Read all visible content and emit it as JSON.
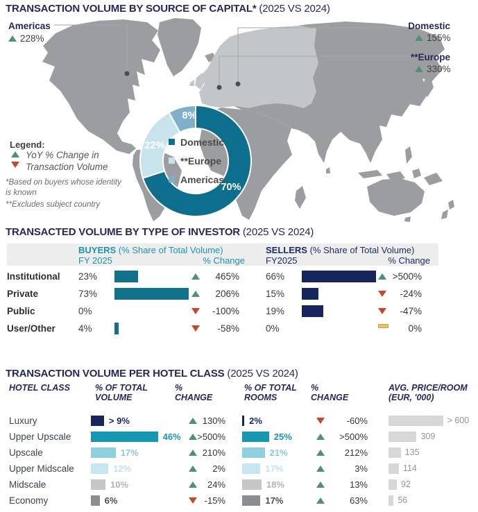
{
  "colors": {
    "navy": "#16265c",
    "navy-text": "#24295a",
    "teal": "#12718a",
    "teal-bright": "#1697b2",
    "teal-text": "#1d94ae",
    "sellers-text": "#1d2d60",
    "donut-domestic": "#0e6e8d",
    "donut-europe": "#c9e3ec",
    "donut-americas": "#7fb0c9",
    "green": "#4f9174",
    "red": "#c4492b",
    "yellow": "#eac068",
    "blue-light": "#8ed0dd",
    "blue-pale": "#c7e7f0",
    "gray-bar": "#c6c6c8",
    "gray-dark": "#8a8e92",
    "price-bar": "#d7d7d8",
    "band": "#ededee",
    "map": "#9b9da0",
    "map-light": "#c3c6c8",
    "line": "#a6a6a6",
    "dot": "#4a4d4f"
  },
  "s1": {
    "title_bold": "TRANSACTION VOLUME BY SOURCE OF CAPITAL*",
    "title_rest": " (2025 VS 2024)",
    "callout_americas": {
      "label": "Americas",
      "value": "228%"
    },
    "callout_domestic": {
      "label": "Domestic",
      "value": "155%"
    },
    "callout_europe": {
      "label": "**Europe",
      "value": "330%"
    },
    "legend_heading": "Legend:",
    "legend_line1": "YoY % Change in",
    "legend_line2": "Transaction Volume",
    "footnote1a": "*Based on buyers whose identity",
    "footnote1b": "is known",
    "footnote2": "**Excludes subject country",
    "donut": {
      "legend": [
        "Domestic",
        "**Europe",
        "Americas"
      ],
      "values": [
        "70%",
        "22%",
        "8%"
      ]
    }
  },
  "s2": {
    "title_bold": "TRANSACTED VOLUME BY TYPE OF INVESTOR",
    "title_rest": " (2025 VS 2024)",
    "buyers_bold": "BUYERS",
    "buyers_rest": " (% Share of Total Volume)",
    "sellers_bold": "SELLERS",
    "sellers_rest": " (% Share of Total Volume)",
    "fy_buyers": "FY 2025",
    "fy_sellers": "FY2025",
    "change_label": "% Change",
    "rows": [
      {
        "label": "Institutional",
        "buyer_value": "23%",
        "buyer_pct": 23,
        "buyer_dir": "up",
        "buyer_change": "465%",
        "seller_value": "66%",
        "seller_pct": 66,
        "seller_dir": "up",
        "seller_change": ">500%"
      },
      {
        "label": "Private",
        "buyer_value": "73%",
        "buyer_pct": 73,
        "buyer_dir": "up",
        "buyer_change": "206%",
        "seller_value": "15%",
        "seller_pct": 15,
        "seller_dir": "down",
        "seller_change": "-24%"
      },
      {
        "label": "Public",
        "buyer_value": "0%",
        "buyer_pct": 0,
        "buyer_dir": "down",
        "buyer_change": "-100%",
        "seller_value": "19%",
        "seller_pct": 19,
        "seller_dir": "down",
        "seller_change": "-47%"
      },
      {
        "label": "User/Other",
        "buyer_value": "4%",
        "buyer_pct": 4,
        "buyer_dir": "down",
        "buyer_change": "-58%",
        "seller_value": "0%",
        "seller_pct": 0,
        "seller_dir": "flat",
        "seller_change": "0%"
      }
    ]
  },
  "s3": {
    "title_bold": "TRANSACTION VOLUME PER HOTEL CLASS",
    "title_rest": " (2025 VS 2024)",
    "headers": {
      "class": "HOTEL CLASS",
      "vol1": "% OF TOTAL",
      "vol2": "VOLUME",
      "chg1": "%",
      "chg2": "CHANGE",
      "rooms1": "% OF TOTAL",
      "rooms2": "ROOMS",
      "price1": "AVG. PRICE/ROOM",
      "price2": "(EUR, '000)"
    },
    "rows": [
      {
        "label": "Luxury",
        "tone": "navy",
        "vol_text": "> 9%",
        "vol_pct": 9,
        "vol_dir": "up",
        "vol_change": "130%",
        "rooms_text": "2%",
        "rooms_pct": 2,
        "rooms_dir": "down",
        "rooms_change": "-60%",
        "price": 600,
        "price_text": "> 600"
      },
      {
        "label": "Upper Upscale",
        "tone": "teal",
        "vol_text": "46%",
        "vol_pct": 46,
        "vol_dir": "up",
        "vol_change": ">500%",
        "rooms_text": "25%",
        "rooms_pct": 25,
        "rooms_dir": "up",
        "rooms_change": ">500%",
        "price": 309,
        "price_text": "309"
      },
      {
        "label": "Upscale",
        "tone": "blue",
        "vol_text": "17%",
        "vol_pct": 17,
        "vol_dir": "up",
        "vol_change": "210%",
        "rooms_text": "21%",
        "rooms_pct": 21,
        "rooms_dir": "up",
        "rooms_change": "212%",
        "price": 135,
        "price_text": "135"
      },
      {
        "label": "Upper Midscale",
        "tone": "pale",
        "vol_text": "12%",
        "vol_pct": 12,
        "vol_dir": "up",
        "vol_change": "2%",
        "rooms_text": "17%",
        "rooms_pct": 17,
        "rooms_dir": "up",
        "rooms_change": "3%",
        "price": 114,
        "price_text": "114"
      },
      {
        "label": "Midscale",
        "tone": "gray",
        "vol_text": "10%",
        "vol_pct": 10,
        "vol_dir": "up",
        "vol_change": "24%",
        "rooms_text": "18%",
        "rooms_pct": 18,
        "rooms_dir": "up",
        "rooms_change": "13%",
        "price": 92,
        "price_text": "92"
      },
      {
        "label": "Economy",
        "tone": "dgray",
        "vol_text": "6%",
        "vol_pct": 6,
        "vol_dir": "down",
        "vol_change": "-15%",
        "rooms_text": "17%",
        "rooms_pct": 17,
        "rooms_dir": "up",
        "rooms_change": "63%",
        "price": 56,
        "price_text": "56"
      }
    ]
  },
  "chart_data": [
    {
      "type": "pie",
      "title": "TRANSACTION VOLUME BY SOURCE OF CAPITAL* (2025 VS 2024)",
      "labels": [
        "Domestic",
        "**Europe",
        "Americas"
      ],
      "values": [
        70,
        22,
        8
      ],
      "unit": "% share of transaction volume",
      "yoy_change": [
        {
          "label": "Domestic",
          "direction": "up",
          "change": "155%"
        },
        {
          "label": "**Europe",
          "direction": "up",
          "change": "330%"
        },
        {
          "label": "Americas",
          "direction": "up",
          "change": "228%"
        }
      ],
      "notes": [
        "*Based on buyers whose identity is known",
        "**Excludes subject country"
      ],
      "legend_note": "YoY % Change in Transaction Volume"
    },
    {
      "type": "bar",
      "title": "TRANSACTED VOLUME BY TYPE OF INVESTOR (2025 VS 2024)",
      "categories": [
        "Institutional",
        "Private",
        "Public",
        "User/Other"
      ],
      "series": [
        {
          "name": "Buyers FY 2025 (% Share of Total Volume)",
          "values": [
            23,
            73,
            0,
            4
          ]
        },
        {
          "name": "Buyers % Change",
          "values": [
            "465%",
            "206%",
            "-100%",
            "-58%"
          ]
        },
        {
          "name": "Sellers FY2025 (% Share of Total Volume)",
          "values": [
            66,
            15,
            19,
            0
          ]
        },
        {
          "name": "Sellers % Change",
          "values": [
            ">500%",
            "-24%",
            "-47%",
            "0%"
          ]
        }
      ]
    },
    {
      "type": "table",
      "title": "TRANSACTION VOLUME PER HOTEL CLASS (2025 VS 2024)",
      "columns": [
        "HOTEL CLASS",
        "% OF TOTAL VOLUME",
        "% CHANGE",
        "% OF TOTAL ROOMS",
        "% CHANGE",
        "AVG. PRICE/ROOM (EUR, '000)"
      ],
      "rows": [
        [
          "Luxury",
          "> 9%",
          "130%",
          "2%",
          "-60%",
          "> 600"
        ],
        [
          "Upper Upscale",
          "46%",
          ">500%",
          "25%",
          ">500%",
          "309"
        ],
        [
          "Upscale",
          "17%",
          "210%",
          "21%",
          "212%",
          "135"
        ],
        [
          "Upper Midscale",
          "12%",
          "2%",
          "17%",
          "3%",
          "114"
        ],
        [
          "Midscale",
          "10%",
          "24%",
          "18%",
          "13%",
          "92"
        ],
        [
          "Economy",
          "6%",
          "-15%",
          "17%",
          "63%",
          "56"
        ]
      ]
    }
  ]
}
